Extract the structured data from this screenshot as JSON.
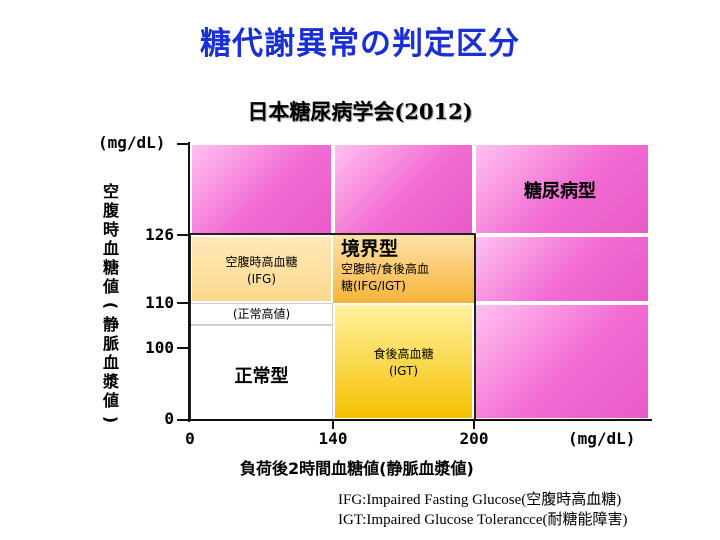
{
  "title": "糖代謝異常の判定区分",
  "subtitle": {
    "org": "日本糖尿病学会",
    "year": "(2012)"
  },
  "y_axis": {
    "unit": "(mg/dL)",
    "label_chars": [
      "空",
      "腹",
      "時",
      "血",
      "糖",
      "値",
      "(",
      "静",
      "脈",
      "血",
      "漿",
      "値",
      ")"
    ],
    "ticks": [
      "126",
      "110",
      "100",
      "0"
    ]
  },
  "x_axis": {
    "unit": "(mg/dL)",
    "label": "負荷後2時間血糖値(静脈血漿値)",
    "ticks": [
      "0",
      "140",
      "200"
    ]
  },
  "regions": {
    "diabetes": "糖尿病型",
    "ifg": {
      "line1": "空腹時高血糖",
      "line2": "(IFG)"
    },
    "borderline": {
      "title": "境界型",
      "line1": "空腹時/食後高血",
      "line2": "糖(IFG/IGT)"
    },
    "high_normal": "(正常高値)",
    "igt": {
      "line1": "食後高血糖",
      "line2": "(IGT)"
    },
    "normal": "正常型"
  },
  "notes": [
    "IFG:Impaired Fasting Glucose(空腹時高血糖)",
    "IGT:Impaired Glucose Tolerancce(耐糖能障害)"
  ],
  "colors": {
    "title": "#1a2fd6",
    "diabetic": "#f26bd3",
    "borderline": "#f7b33a",
    "igt": "#f5c000",
    "ifg": "#fcd98e",
    "normal": "#ffffff"
  }
}
